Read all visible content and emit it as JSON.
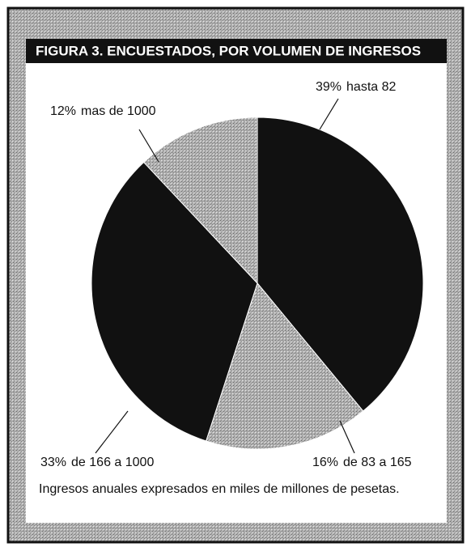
{
  "chart_data": {
    "type": "pie",
    "title": "FIGURA 3.  ENCUESTADOS, POR VOLUMEN DE INGRESOS",
    "categories": [
      "hasta 82",
      "de 83 a 165",
      "de 166 a 1000",
      "mas de 1000"
    ],
    "values": [
      39,
      16,
      33,
      12
    ],
    "value_labels": [
      "39%",
      "16%",
      "33%",
      "12%"
    ],
    "colors": [
      "#111111",
      "#9a9a9a",
      "#111111",
      "#9a9a9a"
    ],
    "note": "Ingresos anuales expresados en miles de millones de pesetas."
  }
}
